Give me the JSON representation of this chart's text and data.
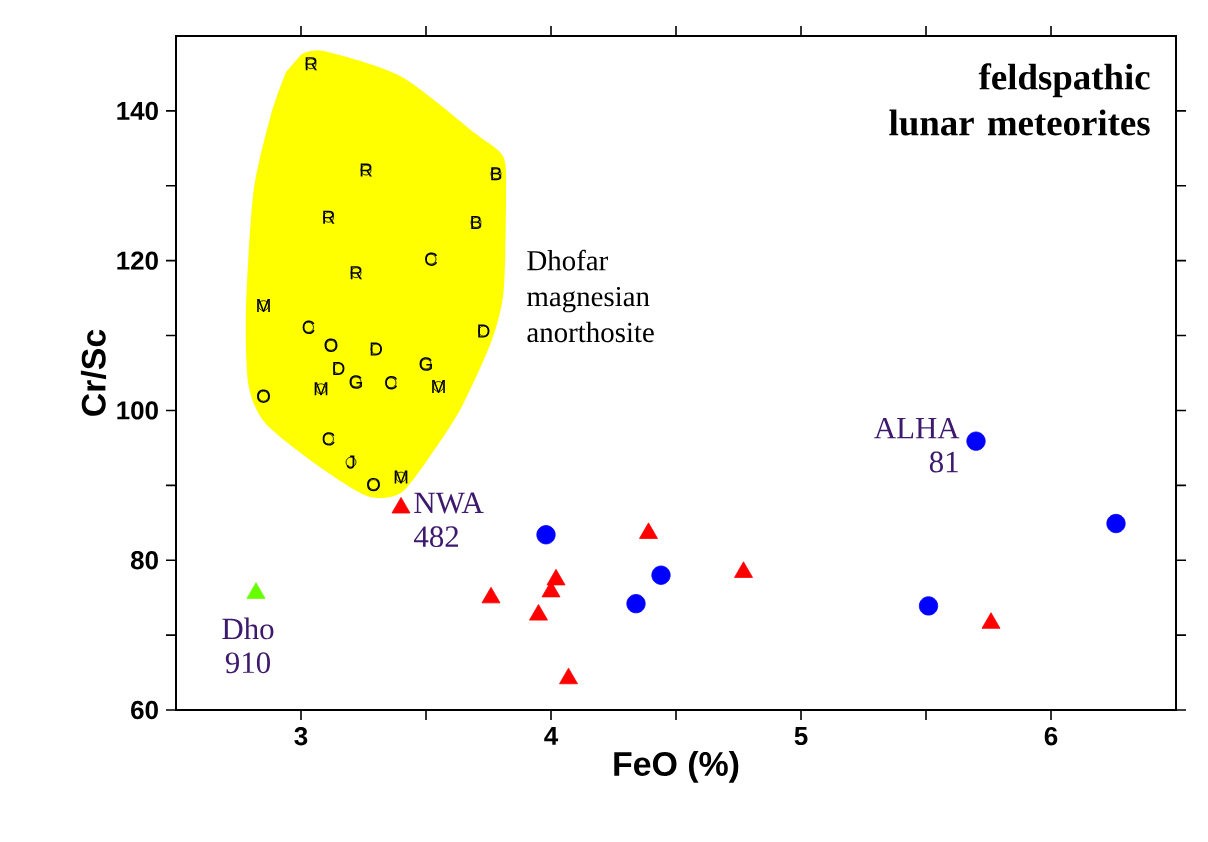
{
  "chart_data": {
    "type": "scatter",
    "title": "feldspathic lunar meteorites",
    "xlabel": "FeO  (%)",
    "ylabel": "Cr/Sc",
    "xlim": [
      2.5,
      6.5
    ],
    "ylim": [
      60,
      150
    ],
    "xticks": [
      3,
      {
        "value": 3.5,
        "label": null
      },
      4,
      {
        "value": 4.5,
        "label": null
      },
      5,
      {
        "value": 5.5,
        "label": null
      },
      6
    ],
    "yticks": [
      60,
      {
        "value": 70,
        "label": null
      },
      80,
      {
        "value": 90,
        "label": null
      },
      100,
      {
        "value": 110,
        "label": null
      },
      120,
      {
        "value": 130,
        "label": null
      },
      140
    ],
    "series": [
      {
        "type": "area",
        "color": "#ffff00",
        "x": [
          3.0,
          3.09,
          3.4,
          3.7,
          3.81,
          3.82,
          3.81,
          3.76,
          3.64,
          3.52,
          3.4,
          3.27,
          3.09,
          2.86,
          2.79,
          2.78,
          2.81,
          2.88,
          2.94
        ],
        "values": [
          147.5,
          148.0,
          144.6,
          136.9,
          133.8,
          128.1,
          115.8,
          109.1,
          100.3,
          94.1,
          89.0,
          88.5,
          92.1,
          98.2,
          103.4,
          113.7,
          129.2,
          139.5,
          145.2
        ]
      },
      {
        "color": "#000000",
        "x": [
          3.04,
          3.26,
          3.78,
          3.11,
          3.7,
          3.52,
          3.22,
          2.85,
          3.03,
          3.73,
          3.12,
          3.3,
          3.5,
          3.15,
          3.08,
          3.22,
          3.36,
          3.55,
          2.85,
          3.11,
          3.2,
          3.29,
          3.4
        ],
        "values": [
          146.3,
          132.1,
          131.6,
          125.8,
          125.1,
          120.2,
          118.4,
          114.0,
          111.1,
          110.6,
          108.7,
          108.2,
          106.2,
          105.6,
          102.9,
          103.8,
          103.7,
          103.2,
          101.9,
          96.2,
          93.1,
          90.1,
          91.1
        ],
        "value_labels": [
          "R",
          "R",
          "B",
          "R",
          "B",
          "C",
          "R",
          "M",
          "C",
          "D",
          "O",
          "D",
          "G",
          "D",
          "M",
          "G",
          "C",
          "M",
          "O",
          "C",
          "J",
          "O",
          "M"
        ]
      },
      {
        "marker": "triangle",
        "color": "#ff0000",
        "x": [
          3.4,
          3.76,
          3.95,
          4.0,
          4.02,
          4.07,
          4.39,
          4.77,
          5.76
        ],
        "values": [
          87,
          75,
          72.7,
          75.8,
          77.4,
          64.2,
          83.6,
          78.4,
          71.6
        ]
      },
      {
        "marker": "triangle",
        "color": "#66ff00",
        "x": [
          2.82
        ],
        "values": [
          75.6
        ]
      },
      {
        "marker": "circle",
        "color": "#0000ff",
        "x": [
          3.98,
          4.34,
          4.44,
          5.51,
          5.7,
          6.26
        ],
        "values": [
          83.4,
          74.2,
          78.0,
          73.9,
          95.9,
          84.9
        ]
      }
    ],
    "annotations": [
      {
        "text": "NWA 482",
        "x": 3.4,
        "y": 87
      },
      {
        "text": "ALHA 81",
        "x": 5.7,
        "y": 95.9
      },
      {
        "text": "Dho 910",
        "x": 2.82,
        "y": 75.6
      },
      "Dhofar magnesian anorthosite"
    ]
  }
}
